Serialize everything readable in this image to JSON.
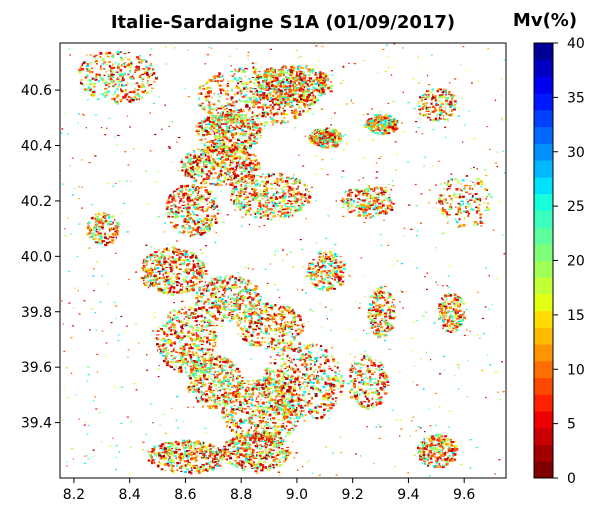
{
  "map": {
    "title": "Italie-Sardaigne S1A (01/09/2017)",
    "x_ticks": [
      "8.2",
      "8.4",
      "8.6",
      "8.8",
      "9.0",
      "9.2",
      "9.4",
      "9.6"
    ],
    "x_tick_values": [
      8.2,
      8.4,
      8.6,
      8.8,
      9.0,
      9.2,
      9.4,
      9.6
    ],
    "y_ticks": [
      "39.4",
      "39.6",
      "39.8",
      "40.0",
      "40.2",
      "40.4",
      "40.6"
    ],
    "y_tick_values": [
      39.4,
      39.6,
      39.8,
      40.0,
      40.2,
      40.4,
      40.6
    ],
    "lon_range": [
      8.15,
      9.75
    ],
    "lat_range": [
      39.2,
      40.77
    ],
    "background_color": "#ffffff"
  },
  "colorbar": {
    "title": "Mv(%)",
    "min": 0,
    "max": 40,
    "ticks": [
      "0",
      "5",
      "10",
      "15",
      "20",
      "25",
      "30",
      "35",
      "40"
    ],
    "tick_values": [
      0,
      5,
      10,
      15,
      20,
      25,
      30,
      35,
      40
    ],
    "colors": [
      "#7f0000",
      "#a30000",
      "#c80000",
      "#ee0000",
      "#ff2100",
      "#ff4800",
      "#ff6e00",
      "#ff9400",
      "#ffb900",
      "#ffdc00",
      "#e3ff14",
      "#c1ff36",
      "#9fff57",
      "#7dff7a",
      "#5cff9b",
      "#3affbd",
      "#18ffde",
      "#00e0ff",
      "#00b8ff",
      "#0090ff",
      "#0068ff",
      "#0040ff",
      "#0018ff",
      "#0000f1",
      "#0000c4",
      "#000096"
    ]
  }
}
